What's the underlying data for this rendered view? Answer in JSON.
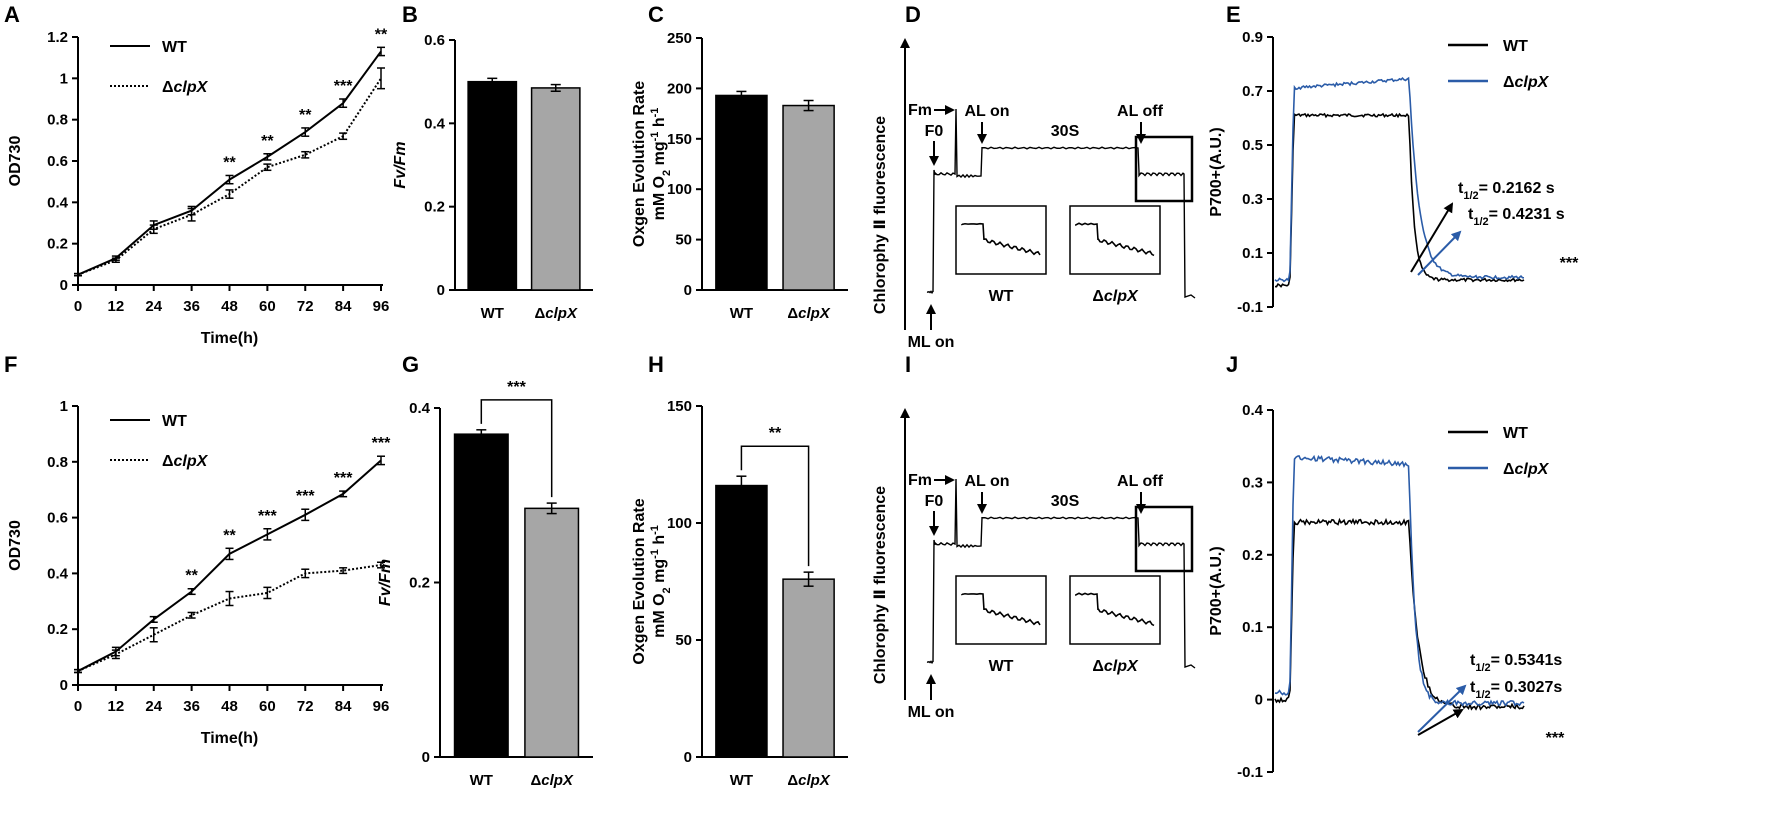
{
  "chart_data": [
    {
      "panel": "A",
      "type": "line",
      "xlabel": "Time(h)",
      "ylabel": "OD730",
      "xlim": [
        0,
        96
      ],
      "ylim": [
        0,
        1.2
      ],
      "xticks": [
        0,
        12,
        24,
        36,
        48,
        60,
        72,
        84,
        96
      ],
      "yticks": [
        0,
        0.2,
        0.4,
        0.6,
        0.8,
        1,
        1.2
      ],
      "ytick_labels": [
        "0",
        "0.2",
        "0.4",
        "0.6",
        "0.8",
        "1",
        "1.2"
      ],
      "series": [
        {
          "name": "WT",
          "style": "solid",
          "x": [
            0,
            12,
            24,
            36,
            48,
            60,
            72,
            84,
            96
          ],
          "values": [
            0.05,
            0.13,
            0.29,
            0.36,
            0.51,
            0.62,
            0.74,
            0.88,
            1.13
          ],
          "errors": [
            0.005,
            0.01,
            0.02,
            0.02,
            0.02,
            0.015,
            0.02,
            0.02,
            0.02
          ]
        },
        {
          "name": "ΔclpX",
          "style": "dotted",
          "x": [
            0,
            12,
            24,
            36,
            48,
            60,
            72,
            84,
            96
          ],
          "values": [
            0.05,
            0.12,
            0.27,
            0.34,
            0.44,
            0.57,
            0.63,
            0.72,
            1.0
          ],
          "errors": [
            0.005,
            0.01,
            0.02,
            0.03,
            0.02,
            0.015,
            0.015,
            0.015,
            0.05
          ]
        }
      ],
      "significance": [
        {
          "x": 48,
          "label": "**"
        },
        {
          "x": 60,
          "label": "**"
        },
        {
          "x": 72,
          "label": "**"
        },
        {
          "x": 84,
          "label": "***"
        },
        {
          "x": 96,
          "label": "**"
        }
      ]
    },
    {
      "panel": "B",
      "type": "bar",
      "ylabel": "Fv/Fm",
      "ylim": [
        0,
        0.6
      ],
      "yticks": [
        0,
        0.2,
        0.4,
        0.6
      ],
      "ytick_labels": [
        "0",
        "0.2",
        "0.4",
        "0.6"
      ],
      "categories": [
        "WT",
        "ΔclpX"
      ],
      "values": [
        0.5,
        0.485
      ],
      "errors": [
        0.008,
        0.008
      ]
    },
    {
      "panel": "C",
      "type": "bar",
      "ylabel_line1": "Oxgen Evolution Rate",
      "ylabel_line2": "mM O2 mg-1 h-1",
      "ylim": [
        0,
        250
      ],
      "yticks": [
        0,
        50,
        100,
        150,
        200,
        250
      ],
      "ytick_labels": [
        "0",
        "50",
        "100",
        "150",
        "200",
        "250"
      ],
      "categories": [
        "WT",
        "ΔclpX"
      ],
      "values": [
        193,
        183
      ],
      "errors": [
        4,
        5
      ]
    },
    {
      "panel": "D",
      "type": "trace",
      "ylabel": "Chlorophy Ⅱ fluorescence",
      "labels": {
        "ml_on": "ML on",
        "f0": "F0",
        "fm": "Fm",
        "al_on": "AL on",
        "duration": "30S",
        "al_off": "AL off",
        "inset_wt": "WT",
        "inset_mut": "ΔclpX"
      }
    },
    {
      "panel": "E",
      "type": "line",
      "ylabel": "P700+(A.U.)",
      "ylim": [
        -0.1,
        0.9
      ],
      "yticks": [
        -0.1,
        0.1,
        0.3,
        0.5,
        0.7,
        0.9
      ],
      "ytick_labels": [
        "-0.1",
        "0.1",
        "0.3",
        "0.5",
        "0.7",
        "0.9"
      ],
      "series": [
        {
          "name": "WT",
          "color": "#000000",
          "baseline": -0.02,
          "plateau": 0.61,
          "end": 0.0
        },
        {
          "name": "ΔclpX",
          "color": "#2b5ca8",
          "baseline": 0.0,
          "plateau": 0.71,
          "plateau_end": 0.745,
          "end": 0.01
        }
      ],
      "annotations": {
        "t1": "t1/2= 0.2162 s",
        "t2": "t1/2= 0.4231 s",
        "sig": "***"
      }
    },
    {
      "panel": "F",
      "type": "line",
      "xlabel": "Time(h)",
      "ylabel": "OD730",
      "xlim": [
        0,
        96
      ],
      "ylim": [
        0,
        1
      ],
      "xticks": [
        0,
        12,
        24,
        36,
        48,
        60,
        72,
        84,
        96
      ],
      "yticks": [
        0,
        0.2,
        0.4,
        0.6,
        0.8,
        1
      ],
      "ytick_labels": [
        "0",
        "0.2",
        "0.4",
        "0.6",
        "0.8",
        "1"
      ],
      "series": [
        {
          "name": "WT",
          "style": "solid",
          "x": [
            0,
            12,
            24,
            36,
            48,
            60,
            72,
            84,
            96
          ],
          "values": [
            0.05,
            0.12,
            0.235,
            0.335,
            0.47,
            0.54,
            0.61,
            0.685,
            0.805
          ],
          "errors": [
            0.005,
            0.015,
            0.01,
            0.01,
            0.02,
            0.02,
            0.02,
            0.01,
            0.015
          ]
        },
        {
          "name": "ΔclpX",
          "style": "dotted",
          "x": [
            0,
            12,
            24,
            36,
            48,
            60,
            72,
            84,
            96
          ],
          "values": [
            0.05,
            0.11,
            0.18,
            0.25,
            0.31,
            0.33,
            0.4,
            0.41,
            0.43
          ],
          "errors": [
            0.005,
            0.015,
            0.025,
            0.01,
            0.025,
            0.02,
            0.015,
            0.01,
            0.01
          ]
        }
      ],
      "significance": [
        {
          "x": 36,
          "label": "**"
        },
        {
          "x": 48,
          "label": "**"
        },
        {
          "x": 60,
          "label": "***"
        },
        {
          "x": 72,
          "label": "***"
        },
        {
          "x": 84,
          "label": "***"
        },
        {
          "x": 96,
          "label": "***"
        }
      ]
    },
    {
      "panel": "G",
      "type": "bar",
      "ylabel": "Fv/Fm",
      "ylim": [
        0,
        0.4
      ],
      "yticks": [
        0,
        0.2,
        0.4
      ],
      "ytick_labels": [
        "0",
        "0.2",
        "0.4"
      ],
      "categories": [
        "WT",
        "ΔclpX"
      ],
      "values": [
        0.37,
        0.285
      ],
      "errors": [
        0.005,
        0.006
      ],
      "significance": "***"
    },
    {
      "panel": "H",
      "type": "bar",
      "ylabel_line1": "Oxgen Evolution Rate",
      "ylabel_line2": "mM O2 mg-1 h-1",
      "ylim": [
        0,
        150
      ],
      "yticks": [
        0,
        50,
        100,
        150
      ],
      "ytick_labels": [
        "0",
        "50",
        "100",
        "150"
      ],
      "categories": [
        "WT",
        "ΔclpX"
      ],
      "values": [
        116,
        76
      ],
      "errors": [
        4,
        3
      ],
      "significance": "**"
    },
    {
      "panel": "I",
      "type": "trace",
      "ylabel": "Chlorophy Ⅱ fluorescence",
      "labels": {
        "ml_on": "ML on",
        "f0": "F0",
        "fm": "Fm",
        "al_on": "AL on",
        "duration": "30S",
        "al_off": "AL off",
        "inset_wt": "WT",
        "inset_mut": "ΔclpX"
      }
    },
    {
      "panel": "J",
      "type": "line",
      "ylabel": "P700+(A.U.)",
      "ylim": [
        -0.1,
        0.4
      ],
      "yticks": [
        -0.1,
        0,
        0.1,
        0.2,
        0.3,
        0.4
      ],
      "ytick_labels": [
        "-0.1",
        "0",
        "0.1",
        "0.2",
        "0.3",
        "0.4"
      ],
      "series": [
        {
          "name": "WT",
          "color": "#000000",
          "baseline": 0.0,
          "plateau": 0.245,
          "end": -0.01
        },
        {
          "name": "ΔclpX",
          "color": "#2b5ca8",
          "baseline": 0.01,
          "plateau": 0.335,
          "plateau_end": 0.325,
          "end": -0.005
        }
      ],
      "annotations": {
        "t1": "t1/2= 0.5341s",
        "t2": "t1/2= 0.3027s",
        "sig": "***"
      }
    }
  ]
}
